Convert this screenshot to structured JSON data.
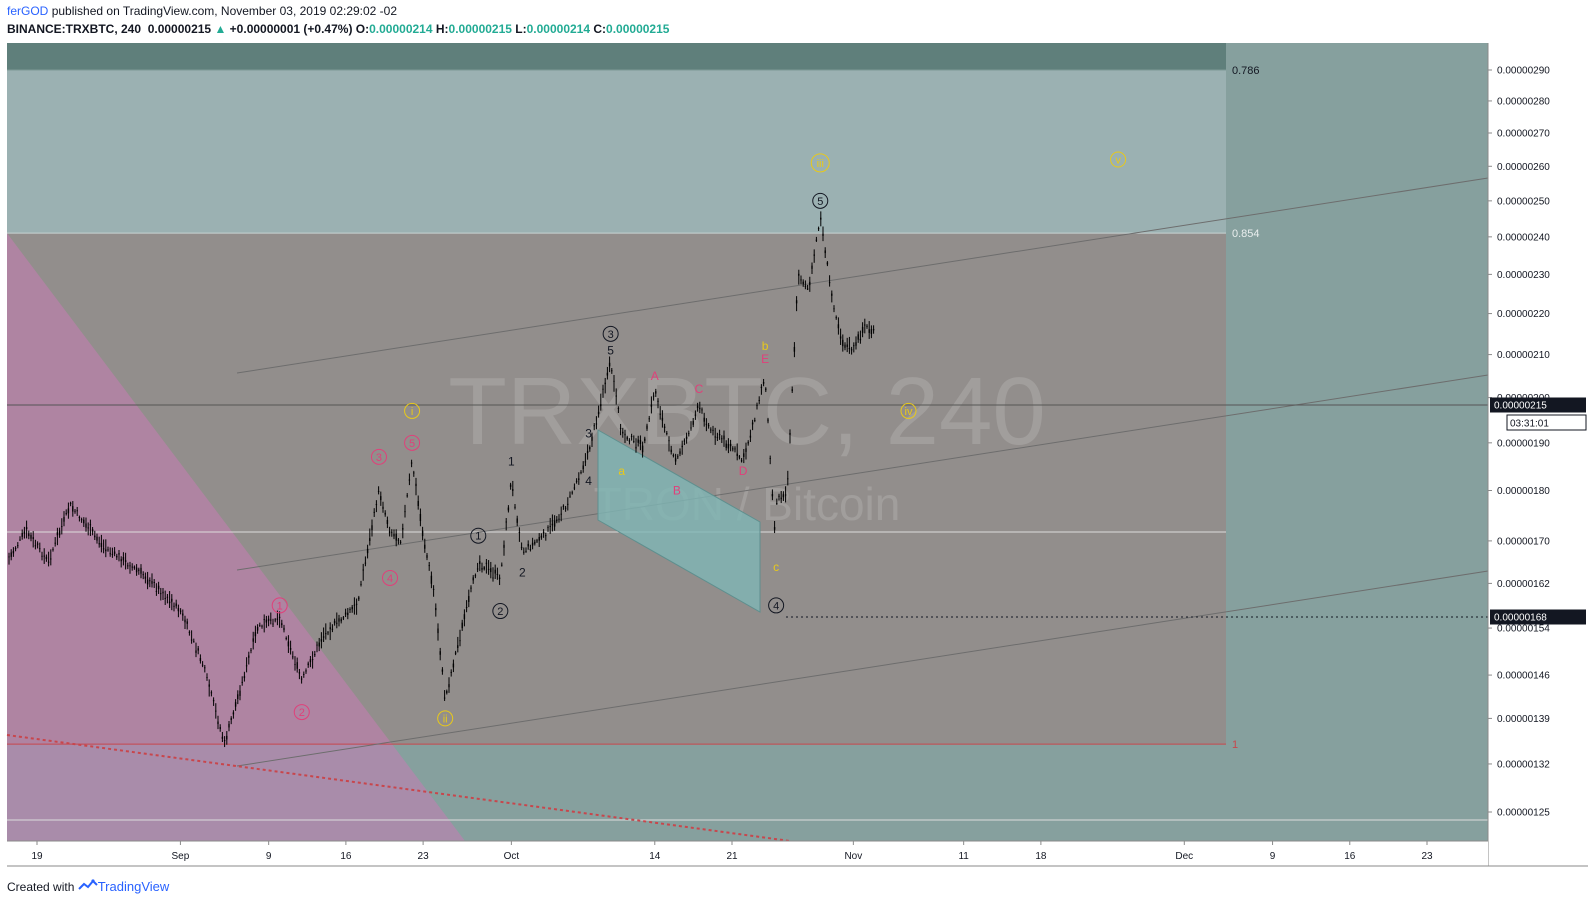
{
  "header": {
    "author": "ferGOD",
    "published": "published on TradingView.com, November 03, 2019 02:29:02 -02",
    "symbol_line": "BINANCE:TRXBTC, 240",
    "last": "0.00000215",
    "change": "+0.00000001 (+0.47%)",
    "o_label": "O:",
    "o": "0.00000214",
    "h_label": "H:",
    "h": "0.00000215",
    "l_label": "L:",
    "l": "0.00000214",
    "c_label": "C:",
    "c": "0.00000215"
  },
  "footer": {
    "created": "Created with",
    "brand": "TradingView"
  },
  "colors": {
    "up": "#22ab94",
    "zone_top": "#5f7f7b",
    "zone_upper": "#9bb1b2",
    "zone_mid": "#928e8c",
    "zone_right": "#86a09e",
    "pink": "#c77cb4",
    "fib_red": "#c8464c"
  },
  "chart_data": {
    "type": "candlestick",
    "title": "TRXBTC, 240",
    "subtitle": "TRON / Bitcoin",
    "xlabel": "",
    "ylabel": "",
    "y_scale": "log",
    "x_ticks": [
      "19",
      "Sep",
      "9",
      "16",
      "23",
      "Oct",
      "14",
      "21",
      "Nov",
      "11",
      "18",
      "Dec",
      "9",
      "16",
      "23"
    ],
    "y_ticks": [
      "0.00000290",
      "0.00000280",
      "0.00000270",
      "0.00000260",
      "0.00000250",
      "0.00000240",
      "0.00000230",
      "0.00000220",
      "0.00000210",
      "0.00000200",
      "0.00000190",
      "0.00000180",
      "0.00000170",
      "0.00000162",
      "0.00000154",
      "0.00000146",
      "0.00000139",
      "0.00000132",
      "0.00000125"
    ],
    "last_price_label": "0.00000215",
    "countdown_label": "03:31:01",
    "level_label": "0.00000168",
    "fib_levels": [
      {
        "label": "0.786",
        "value": 2.9e-06
      },
      {
        "label": "0.854",
        "value": 2.41e-06
      },
      {
        "label": "1",
        "value": 1.35e-06
      }
    ],
    "price_path": [
      [
        "Aug 16",
        1.65e-06
      ],
      [
        "Aug 18",
        1.72e-06
      ],
      [
        "Aug 20",
        1.66e-06
      ],
      [
        "Aug 22",
        1.77e-06
      ],
      [
        "Aug 25",
        1.69e-06
      ],
      [
        "Aug 29",
        1.63e-06
      ],
      [
        "Sep 1",
        1.57e-06
      ],
      [
        "Sep 3",
        1.48e-06
      ],
      [
        "Sep 5",
        1.35e-06
      ],
      [
        "Sep 8",
        1.54e-06
      ],
      [
        "Sep 10",
        1.56e-06
      ],
      [
        "Sep 12",
        1.45e-06
      ],
      [
        "Sep 14",
        1.53e-06
      ],
      [
        "Sep 17",
        1.58e-06
      ],
      [
        "Sep 19",
        1.8e-06
      ],
      [
        "Sep 20",
        1.72e-06
      ],
      [
        "Sep 21",
        1.7e-06
      ],
      [
        "Sep 22",
        1.86e-06
      ],
      [
        "Sep 23",
        1.71e-06
      ],
      [
        "Sep 24",
        1.6e-06
      ],
      [
        "Sep 25",
        1.42e-06
      ],
      [
        "Sep 26",
        1.5e-06
      ],
      [
        "Sep 28",
        1.66e-06
      ],
      [
        "Sep 30",
        1.63e-06
      ],
      [
        "Oct 1",
        1.82e-06
      ],
      [
        "Oct 2",
        1.68e-06
      ],
      [
        "Oct 4",
        1.71e-06
      ],
      [
        "Oct 6",
        1.77e-06
      ],
      [
        "Oct 8",
        1.88e-06
      ],
      [
        "Oct 9",
        1.98e-06
      ],
      [
        "Oct 10",
        2.08e-06
      ],
      [
        "Oct 11",
        1.92e-06
      ],
      [
        "Oct 13",
        1.89e-06
      ],
      [
        "Oct 14",
        2.02e-06
      ],
      [
        "Oct 15",
        1.92e-06
      ],
      [
        "Oct 16",
        1.86e-06
      ],
      [
        "Oct 18",
        1.98e-06
      ],
      [
        "Oct 19",
        1.93e-06
      ],
      [
        "Oct 21",
        1.89e-06
      ],
      [
        "Oct 22",
        1.86e-06
      ],
      [
        "Oct 23",
        1.95e-06
      ],
      [
        "Oct 24",
        2.05e-06
      ],
      [
        "Oct 25",
        1.68e-06
      ],
      [
        "Oct 25",
        1.78e-06
      ],
      [
        "Oct 26",
        1.8e-06
      ],
      [
        "Oct 27",
        2.3e-06
      ],
      [
        "Oct 28",
        2.26e-06
      ],
      [
        "Oct 29",
        2.46e-06
      ],
      [
        "Oct 30",
        2.25e-06
      ],
      [
        "Oct 31",
        2.13e-06
      ],
      [
        "Nov 1",
        2.11e-06
      ],
      [
        "Nov 2",
        2.17e-06
      ],
      [
        "Nov 3",
        2.15e-06
      ]
    ],
    "wave_labels": [
      {
        "label": "1",
        "at": [
          "Sep 10",
          1.58e-06
        ],
        "color": "#e0407a",
        "circle": true
      },
      {
        "label": "2",
        "at": [
          "Sep 12",
          1.4e-06
        ],
        "color": "#e0407a",
        "circle": true
      },
      {
        "label": "3",
        "at": [
          "Sep 19",
          1.87e-06
        ],
        "color": "#e0407a",
        "circle": true
      },
      {
        "label": "4",
        "at": [
          "Sep 20",
          1.63e-06
        ],
        "color": "#e0407a",
        "circle": true
      },
      {
        "label": "5",
        "at": [
          "Sep 22",
          1.9e-06
        ],
        "color": "#e0407a",
        "circle": true
      },
      {
        "label": "i",
        "at": [
          "Sep 22",
          1.97e-06
        ],
        "color": "#e8c91a",
        "circle": true
      },
      {
        "label": "ii",
        "at": [
          "Sep 25",
          1.39e-06
        ],
        "color": "#e8c91a",
        "circle": true
      },
      {
        "label": "1",
        "at": [
          "Sep 28",
          1.71e-06
        ],
        "color": "#131722",
        "circle": true
      },
      {
        "label": "2",
        "at": [
          "Sep 30",
          1.57e-06
        ],
        "color": "#131722",
        "circle": true
      },
      {
        "label": "1",
        "at": [
          "Oct 1",
          1.86e-06
        ],
        "color": "#131722",
        "circle": false
      },
      {
        "label": "2",
        "at": [
          "Oct 2",
          1.64e-06
        ],
        "color": "#131722",
        "circle": false
      },
      {
        "label": "3",
        "at": [
          "Oct 8",
          1.92e-06
        ],
        "color": "#131722",
        "circle": false
      },
      {
        "label": "4",
        "at": [
          "Oct 8",
          1.82e-06
        ],
        "color": "#131722",
        "circle": false
      },
      {
        "label": "5",
        "at": [
          "Oct 10",
          2.11e-06
        ],
        "color": "#131722",
        "circle": false
      },
      {
        "label": "3",
        "at": [
          "Oct 10",
          2.15e-06
        ],
        "color": "#131722",
        "circle": true
      },
      {
        "label": "a",
        "at": [
          "Oct 11",
          1.84e-06
        ],
        "color": "#e8c91a",
        "circle": false
      },
      {
        "label": "A",
        "at": [
          "Oct 14",
          2.05e-06
        ],
        "color": "#e0407a",
        "circle": false
      },
      {
        "label": "B",
        "at": [
          "Oct 16",
          1.8e-06
        ],
        "color": "#e0407a",
        "circle": false
      },
      {
        "label": "C",
        "at": [
          "Oct 18",
          2.02e-06
        ],
        "color": "#e0407a",
        "circle": false
      },
      {
        "label": "D",
        "at": [
          "Oct 22",
          1.84e-06
        ],
        "color": "#e0407a",
        "circle": false
      },
      {
        "label": "E",
        "at": [
          "Oct 24",
          2.09e-06
        ],
        "color": "#e0407a",
        "circle": false
      },
      {
        "label": "b",
        "at": [
          "Oct 24",
          2.12e-06
        ],
        "color": "#e8c91a",
        "circle": false
      },
      {
        "label": "c",
        "at": [
          "Oct 25",
          1.65e-06
        ],
        "color": "#e8c91a",
        "circle": false
      },
      {
        "label": "4",
        "at": [
          "Oct 25",
          1.58e-06
        ],
        "color": "#131722",
        "circle": true
      },
      {
        "label": "5",
        "at": [
          "Oct 29",
          2.5e-06
        ],
        "color": "#131722",
        "circle": true
      },
      {
        "label": "iii",
        "at": [
          "Oct 29",
          2.61e-06
        ],
        "color": "#e8c91a",
        "circle": true
      },
      {
        "label": "iv",
        "at": [
          "Nov 6",
          1.97e-06
        ],
        "color": "#e8c91a",
        "circle": true
      },
      {
        "label": "v",
        "at": [
          "Nov 25",
          2.62e-06
        ],
        "color": "#e8c91a",
        "circle": true
      }
    ]
  }
}
